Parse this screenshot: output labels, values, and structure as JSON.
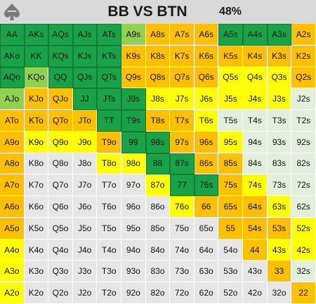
{
  "header": {
    "title": "BB VS BTN",
    "percent": "48%",
    "logo_icon": "spade-logo-icon",
    "background": "#d9d9d9"
  },
  "legend_colors": {
    "dg": "#19a348",
    "lg": "#92d050",
    "or": "#ffc000",
    "yl": "#ffff00",
    "pg": "#e2efda",
    "gy": "#e7e6e6"
  },
  "grid": [
    [
      {
        "h": "AA",
        "c": "dg"
      },
      {
        "h": "AKs",
        "c": "dg"
      },
      {
        "h": "AQs",
        "c": "dg"
      },
      {
        "h": "AJs",
        "c": "dg"
      },
      {
        "h": "ATs",
        "c": "dg"
      },
      {
        "h": "A9s",
        "c": "lg"
      },
      {
        "h": "A8s",
        "c": "or"
      },
      {
        "h": "A7s",
        "c": "or"
      },
      {
        "h": "A6s",
        "c": "or"
      },
      {
        "h": "A5s",
        "c": "dg"
      },
      {
        "h": "A4s",
        "c": "dg"
      },
      {
        "h": "A3s",
        "c": "dg"
      },
      {
        "h": "A2s",
        "c": "or"
      }
    ],
    [
      {
        "h": "AKo",
        "c": "dg"
      },
      {
        "h": "KK",
        "c": "dg"
      },
      {
        "h": "KQs",
        "c": "dg"
      },
      {
        "h": "KJs",
        "c": "dg"
      },
      {
        "h": "KTs",
        "c": "dg"
      },
      {
        "h": "K9s",
        "c": "or"
      },
      {
        "h": "K8s",
        "c": "or"
      },
      {
        "h": "K7s",
        "c": "or"
      },
      {
        "h": "K6s",
        "c": "or"
      },
      {
        "h": "K5s",
        "c": "or"
      },
      {
        "h": "K4s",
        "c": "or"
      },
      {
        "h": "K3s",
        "c": "or"
      },
      {
        "h": "K2s",
        "c": "or"
      }
    ],
    [
      {
        "h": "AQo",
        "c": "dg"
      },
      {
        "h": "KQo",
        "c": "lg"
      },
      {
        "h": "QQ",
        "c": "dg"
      },
      {
        "h": "QJs",
        "c": "dg"
      },
      {
        "h": "QTs",
        "c": "dg"
      },
      {
        "h": "Q9s",
        "c": "or"
      },
      {
        "h": "Q8s",
        "c": "or"
      },
      {
        "h": "Q7s",
        "c": "or"
      },
      {
        "h": "Q6s",
        "c": "or"
      },
      {
        "h": "Q5s",
        "c": "yl"
      },
      {
        "h": "Q4s",
        "c": "yl"
      },
      {
        "h": "Q3s",
        "c": "yl"
      },
      {
        "h": "Q2s",
        "c": "or"
      }
    ],
    [
      {
        "h": "AJo",
        "c": "lg"
      },
      {
        "h": "KJo",
        "c": "or"
      },
      {
        "h": "QJo",
        "c": "or"
      },
      {
        "h": "JJ",
        "c": "dg"
      },
      {
        "h": "JTs",
        "c": "dg"
      },
      {
        "h": "J9s",
        "c": "dg"
      },
      {
        "h": "J8s",
        "c": "yl"
      },
      {
        "h": "J7s",
        "c": "yl"
      },
      {
        "h": "J6s",
        "c": "yl"
      },
      {
        "h": "J5s",
        "c": "yl"
      },
      {
        "h": "J4s",
        "c": "yl"
      },
      {
        "h": "J3s",
        "c": "yl"
      },
      {
        "h": "J2s",
        "c": "pg"
      }
    ],
    [
      {
        "h": "ATo",
        "c": "or"
      },
      {
        "h": "KTo",
        "c": "or"
      },
      {
        "h": "QTo",
        "c": "or"
      },
      {
        "h": "JTo",
        "c": "or"
      },
      {
        "h": "TT",
        "c": "dg"
      },
      {
        "h": "T9s",
        "c": "dg"
      },
      {
        "h": "T8s",
        "c": "or"
      },
      {
        "h": "T7s",
        "c": "or"
      },
      {
        "h": "T6s",
        "c": "yl"
      },
      {
        "h": "T5s",
        "c": "pg"
      },
      {
        "h": "T4s",
        "c": "pg"
      },
      {
        "h": "T3s",
        "c": "pg"
      },
      {
        "h": "T2s",
        "c": "pg"
      }
    ],
    [
      {
        "h": "A9o",
        "c": "or"
      },
      {
        "h": "K9o",
        "c": "yl"
      },
      {
        "h": "Q9o",
        "c": "yl"
      },
      {
        "h": "J9o",
        "c": "yl"
      },
      {
        "h": "T9o",
        "c": "or"
      },
      {
        "h": "99",
        "c": "dg"
      },
      {
        "h": "98s",
        "c": "dg"
      },
      {
        "h": "97s",
        "c": "or"
      },
      {
        "h": "96s",
        "c": "or"
      },
      {
        "h": "95s",
        "c": "yl"
      },
      {
        "h": "94s",
        "c": "pg"
      },
      {
        "h": "93s",
        "c": "pg"
      },
      {
        "h": "92s",
        "c": "pg"
      }
    ],
    [
      {
        "h": "A8o",
        "c": "or"
      },
      {
        "h": "K8o",
        "c": "gy"
      },
      {
        "h": "Q8o",
        "c": "gy"
      },
      {
        "h": "J8o",
        "c": "gy"
      },
      {
        "h": "T8o",
        "c": "yl"
      },
      {
        "h": "98o",
        "c": "yl"
      },
      {
        "h": "88",
        "c": "dg"
      },
      {
        "h": "87s",
        "c": "dg"
      },
      {
        "h": "86s",
        "c": "or"
      },
      {
        "h": "85s",
        "c": "or"
      },
      {
        "h": "84s",
        "c": "pg"
      },
      {
        "h": "83s",
        "c": "pg"
      },
      {
        "h": "82s",
        "c": "pg"
      }
    ],
    [
      {
        "h": "A7o",
        "c": "or"
      },
      {
        "h": "K7o",
        "c": "gy"
      },
      {
        "h": "Q7o",
        "c": "gy"
      },
      {
        "h": "J7o",
        "c": "gy"
      },
      {
        "h": "T7o",
        "c": "gy"
      },
      {
        "h": "97o",
        "c": "gy"
      },
      {
        "h": "87o",
        "c": "yl"
      },
      {
        "h": "77",
        "c": "dg"
      },
      {
        "h": "76s",
        "c": "dg"
      },
      {
        "h": "75s",
        "c": "or"
      },
      {
        "h": "74s",
        "c": "yl"
      },
      {
        "h": "73s",
        "c": "pg"
      },
      {
        "h": "72s",
        "c": "pg"
      }
    ],
    [
      {
        "h": "A6o",
        "c": "or"
      },
      {
        "h": "K6o",
        "c": "gy"
      },
      {
        "h": "Q6o",
        "c": "gy"
      },
      {
        "h": "J6o",
        "c": "gy"
      },
      {
        "h": "T6o",
        "c": "gy"
      },
      {
        "h": "96o",
        "c": "gy"
      },
      {
        "h": "86o",
        "c": "gy"
      },
      {
        "h": "76o",
        "c": "yl"
      },
      {
        "h": "66",
        "c": "or"
      },
      {
        "h": "65s",
        "c": "or"
      },
      {
        "h": "64s",
        "c": "or"
      },
      {
        "h": "63s",
        "c": "yl"
      },
      {
        "h": "62s",
        "c": "pg"
      }
    ],
    [
      {
        "h": "A5o",
        "c": "or"
      },
      {
        "h": "K5o",
        "c": "gy"
      },
      {
        "h": "Q5o",
        "c": "gy"
      },
      {
        "h": "J5o",
        "c": "gy"
      },
      {
        "h": "T5o",
        "c": "gy"
      },
      {
        "h": "95o",
        "c": "gy"
      },
      {
        "h": "85o",
        "c": "gy"
      },
      {
        "h": "75o",
        "c": "gy"
      },
      {
        "h": "65o",
        "c": "gy"
      },
      {
        "h": "55",
        "c": "or"
      },
      {
        "h": "54s",
        "c": "or"
      },
      {
        "h": "53s",
        "c": "or"
      },
      {
        "h": "52s",
        "c": "yl"
      }
    ],
    [
      {
        "h": "A4o",
        "c": "yl"
      },
      {
        "h": "K4o",
        "c": "gy"
      },
      {
        "h": "Q4o",
        "c": "gy"
      },
      {
        "h": "J4o",
        "c": "gy"
      },
      {
        "h": "T4o",
        "c": "gy"
      },
      {
        "h": "94o",
        "c": "gy"
      },
      {
        "h": "84o",
        "c": "gy"
      },
      {
        "h": "74o",
        "c": "gy"
      },
      {
        "h": "64o",
        "c": "gy"
      },
      {
        "h": "54o",
        "c": "gy"
      },
      {
        "h": "44",
        "c": "or"
      },
      {
        "h": "43s",
        "c": "yl"
      },
      {
        "h": "42s",
        "c": "yl"
      }
    ],
    [
      {
        "h": "A3o",
        "c": "yl"
      },
      {
        "h": "K3o",
        "c": "gy"
      },
      {
        "h": "Q3o",
        "c": "gy"
      },
      {
        "h": "J3o",
        "c": "gy"
      },
      {
        "h": "T3o",
        "c": "gy"
      },
      {
        "h": "93o",
        "c": "gy"
      },
      {
        "h": "83o",
        "c": "gy"
      },
      {
        "h": "73o",
        "c": "gy"
      },
      {
        "h": "63o",
        "c": "gy"
      },
      {
        "h": "53o",
        "c": "gy"
      },
      {
        "h": "43o",
        "c": "gy"
      },
      {
        "h": "33",
        "c": "or"
      },
      {
        "h": "32s",
        "c": "pg"
      }
    ],
    [
      {
        "h": "A2o",
        "c": "yl"
      },
      {
        "h": "K2o",
        "c": "gy"
      },
      {
        "h": "Q2o",
        "c": "gy"
      },
      {
        "h": "J2o",
        "c": "gy"
      },
      {
        "h": "T2o",
        "c": "gy"
      },
      {
        "h": "92o",
        "c": "gy"
      },
      {
        "h": "82o",
        "c": "gy"
      },
      {
        "h": "72o",
        "c": "gy"
      },
      {
        "h": "62o",
        "c": "gy"
      },
      {
        "h": "52o",
        "c": "gy"
      },
      {
        "h": "42o",
        "c": "gy"
      },
      {
        "h": "32o",
        "c": "gy"
      },
      {
        "h": "22",
        "c": "or"
      }
    ]
  ]
}
